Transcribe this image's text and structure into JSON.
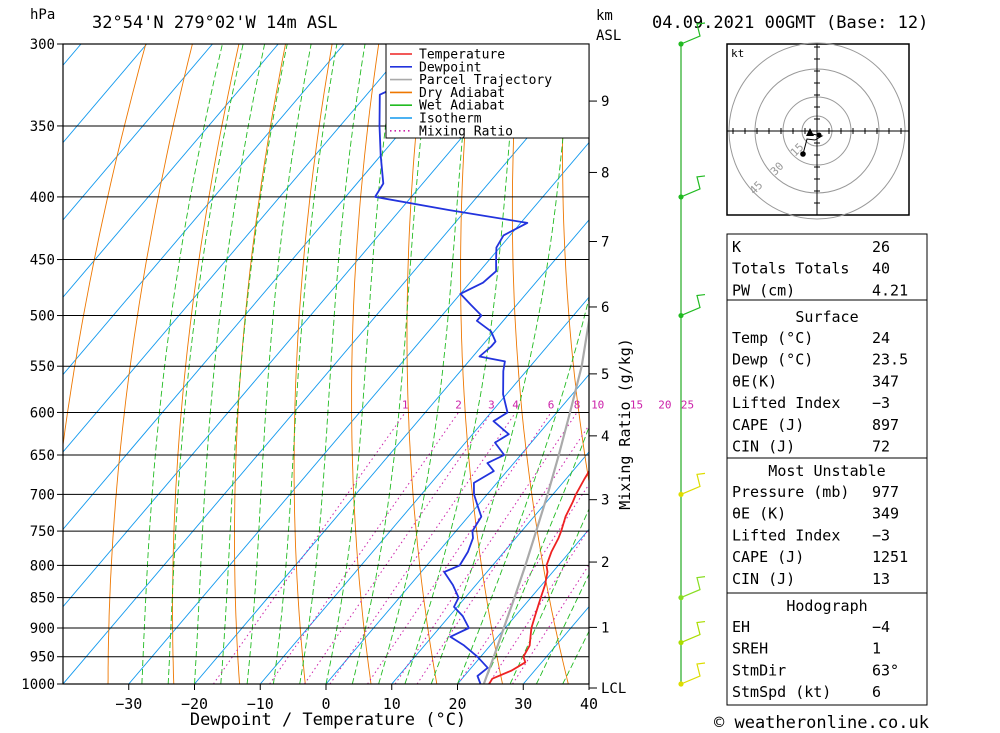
{
  "header": {
    "location": "32°54'N  279°02'W  14m  ASL",
    "date": "04.09.2021  00GMT  (Base: 12)",
    "hpa_unit": "hPa",
    "km_unit": "km",
    "asl_unit": "ASL"
  },
  "footer": {
    "credit": "© weatheronline.co.uk"
  },
  "chart_data": {
    "type": "line",
    "xlabel": "Dewpoint / Temperature (°C)",
    "y2label": "Mixing Ratio (g/kg)",
    "x_ticks": [
      -30,
      -20,
      -10,
      0,
      10,
      20,
      30,
      40
    ],
    "x_range": [
      -40,
      40
    ],
    "pressure_ticks": [
      300,
      350,
      400,
      450,
      500,
      550,
      600,
      650,
      700,
      750,
      800,
      850,
      900,
      950,
      1000
    ],
    "p_range": [
      300,
      1000
    ],
    "km_ticks": [
      {
        "label": "1",
        "p": 899
      },
      {
        "label": "2",
        "p": 795
      },
      {
        "label": "3",
        "p": 707
      },
      {
        "label": "4",
        "p": 627
      },
      {
        "label": "5",
        "p": 558
      },
      {
        "label": "6",
        "p": 492
      },
      {
        "label": "7",
        "p": 435
      },
      {
        "label": "8",
        "p": 382
      },
      {
        "label": "9",
        "p": 334
      },
      {
        "label": "LCL",
        "p": 1000
      }
    ],
    "mixing_ratio_labels": [
      "1",
      "2",
      "3",
      "4",
      "6",
      "8",
      "10",
      "15",
      "20",
      "25"
    ],
    "legend": [
      {
        "name": "Temperature",
        "color": "#ee2222",
        "style": "solid"
      },
      {
        "name": "Dewpoint",
        "color": "#2233dd",
        "style": "solid"
      },
      {
        "name": "Parcel Trajectory",
        "color": "#aaaaaa",
        "style": "solid"
      },
      {
        "name": "Dry Adiabat",
        "color": "#ee7700",
        "style": "solid"
      },
      {
        "name": "Wet Adiabat",
        "color": "#22bb22",
        "style": "solid"
      },
      {
        "name": "Isotherm",
        "color": "#1199ee",
        "style": "solid"
      },
      {
        "name": "Mixing Ratio",
        "color": "#cc22aa",
        "style": "dotted"
      }
    ],
    "series": [
      {
        "name": "Temperature",
        "color": "#ee2222",
        "points": [
          [
            1000,
            24.8
          ],
          [
            990,
            24.6
          ],
          [
            975,
            26.5
          ],
          [
            960,
            27.5
          ],
          [
            950,
            26.5
          ],
          [
            930,
            26.0
          ],
          [
            915,
            25.0
          ],
          [
            900,
            24.0
          ],
          [
            880,
            23.0
          ],
          [
            860,
            22.0
          ],
          [
            850,
            21.5
          ],
          [
            830,
            20.5
          ],
          [
            810,
            19.2
          ],
          [
            800,
            18.2
          ],
          [
            780,
            17.2
          ],
          [
            760,
            16.5
          ],
          [
            750,
            16.0
          ],
          [
            730,
            14.8
          ],
          [
            710,
            14.0
          ],
          [
            700,
            13.5
          ],
          [
            680,
            12.8
          ],
          [
            660,
            12.2
          ],
          [
            650,
            12.0
          ],
          [
            630,
            11.5
          ],
          [
            610,
            10.8
          ],
          [
            600,
            10.2
          ],
          [
            580,
            9.0
          ],
          [
            560,
            7.5
          ],
          [
            550,
            6.8
          ],
          [
            530,
            4.8
          ],
          [
            510,
            3.0
          ],
          [
            500,
            2.0
          ],
          [
            480,
            0.3
          ],
          [
            460,
            -2.2
          ],
          [
            450,
            -3.2
          ],
          [
            430,
            -5.8
          ],
          [
            420,
            -7.2
          ],
          [
            400,
            -9.8
          ],
          [
            380,
            -11.6
          ],
          [
            370,
            -13.2
          ],
          [
            350,
            -17.6
          ],
          [
            330,
            -21.5
          ],
          [
            315,
            -25.0
          ],
          [
            300,
            -29.2
          ]
        ]
      },
      {
        "name": "Dewpoint",
        "color": "#2233dd",
        "points": [
          [
            1000,
            23.5
          ],
          [
            985,
            22.0
          ],
          [
            970,
            22.5
          ],
          [
            950,
            19.5
          ],
          [
            930,
            16.0
          ],
          [
            915,
            12.8
          ],
          [
            900,
            14.5
          ],
          [
            880,
            12.0
          ],
          [
            865,
            9.5
          ],
          [
            850,
            9.0
          ],
          [
            830,
            6.5
          ],
          [
            810,
            3.5
          ],
          [
            800,
            5.0
          ],
          [
            780,
            4.5
          ],
          [
            760,
            3.5
          ],
          [
            750,
            2.5
          ],
          [
            730,
            2.0
          ],
          [
            715,
            0.0
          ],
          [
            700,
            -2.0
          ],
          [
            685,
            -3.5
          ],
          [
            670,
            -2.0
          ],
          [
            660,
            -4.0
          ],
          [
            650,
            -2.5
          ],
          [
            635,
            -5.5
          ],
          [
            625,
            -4.5
          ],
          [
            610,
            -8.5
          ],
          [
            600,
            -7.5
          ],
          [
            580,
            -10.5
          ],
          [
            555,
            -13.5
          ],
          [
            545,
            -14.5
          ],
          [
            540,
            -19.0
          ],
          [
            530,
            -18.5
          ],
          [
            525,
            -18.5
          ],
          [
            515,
            -20.5
          ],
          [
            505,
            -24.0
          ],
          [
            500,
            -24.0
          ],
          [
            490,
            -27.0
          ],
          [
            480,
            -30.0
          ],
          [
            470,
            -28.0
          ],
          [
            460,
            -27.5
          ],
          [
            450,
            -29.0
          ],
          [
            440,
            -30.5
          ],
          [
            430,
            -31.0
          ],
          [
            420,
            -29.0
          ],
          [
            410,
            -42.5
          ],
          [
            400,
            -55.5
          ],
          [
            390,
            -56.0
          ],
          [
            370,
            -60.0
          ],
          [
            350,
            -64.0
          ],
          [
            330,
            -68.0
          ],
          [
            315,
            -63.0
          ],
          [
            300,
            -58.0
          ]
        ]
      },
      {
        "name": "Parcel Trajectory",
        "color": "#aaaaaa",
        "points": [
          [
            1000,
            24.0
          ],
          [
            950,
            22.0
          ],
          [
            900,
            19.8
          ],
          [
            850,
            17.5
          ],
          [
            800,
            15.0
          ],
          [
            750,
            12.2
          ],
          [
            700,
            9.2
          ],
          [
            650,
            5.8
          ],
          [
            600,
            2.0
          ],
          [
            550,
            -2.2
          ],
          [
            500,
            -7.5
          ],
          [
            450,
            -13.5
          ],
          [
            400,
            -21.0
          ],
          [
            350,
            -30.5
          ],
          [
            300,
            -43.0
          ]
        ]
      }
    ],
    "wind_barbs": [
      {
        "p": 1000,
        "color": "#dddd00"
      },
      {
        "p": 925,
        "color": "#aadd00"
      },
      {
        "p": 850,
        "color": "#88dd22"
      },
      {
        "p": 700,
        "color": "#dddd00"
      },
      {
        "p": 500,
        "color": "#22bb22"
      },
      {
        "p": 400,
        "color": "#22bb22"
      },
      {
        "p": 300,
        "color": "#22bb22"
      }
    ],
    "hodograph": {
      "unit": "kt",
      "ring_labels": [
        "15",
        "30",
        "45"
      ]
    },
    "indices": {
      "top": [
        {
          "label": "K",
          "value": "26"
        },
        {
          "label": "Totals Totals",
          "value": "40"
        },
        {
          "label": "PW (cm)",
          "value": "4.21"
        }
      ],
      "surface": {
        "title": "Surface",
        "rows": [
          {
            "label": "Temp (°C)",
            "value": "24"
          },
          {
            "label": "Dewp (°C)",
            "value": "23.5"
          },
          {
            "label": "θE(K)",
            "value": "347"
          },
          {
            "label": "Lifted Index",
            "value": "−3"
          },
          {
            "label": "CAPE (J)",
            "value": "897"
          },
          {
            "label": "CIN (J)",
            "value": "72"
          }
        ]
      },
      "most_unstable": {
        "title": "Most Unstable",
        "rows": [
          {
            "label": "Pressure (mb)",
            "value": "977"
          },
          {
            "label": "θE (K)",
            "value": "349"
          },
          {
            "label": "Lifted Index",
            "value": "−3"
          },
          {
            "label": "CAPE (J)",
            "value": "1251"
          },
          {
            "label": "CIN (J)",
            "value": "13"
          }
        ]
      },
      "hodograph": {
        "title": "Hodograph",
        "rows": [
          {
            "label": "EH",
            "value": "−4"
          },
          {
            "label": "SREH",
            "value": "1"
          },
          {
            "label": "StmDir",
            "value": "63°"
          },
          {
            "label": "StmSpd (kt)",
            "value": "6"
          }
        ]
      }
    }
  }
}
